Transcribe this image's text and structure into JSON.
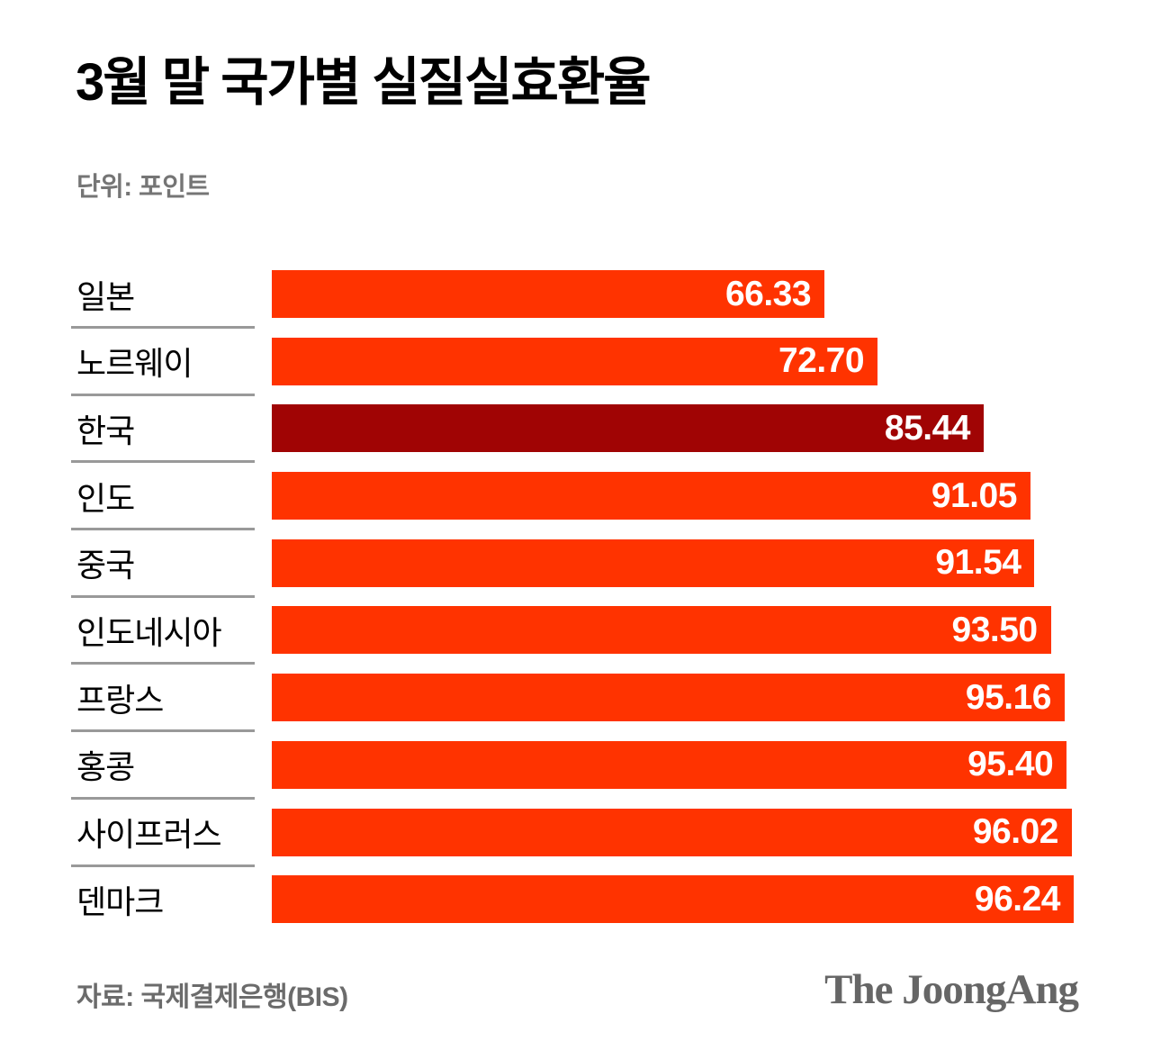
{
  "title": "3월 말 국가별 실질실효환율",
  "unit_label": "단위: 포인트",
  "source_label": "자료: 국제결제은행(BIS)",
  "logo_text": "The JoongAng",
  "colors": {
    "bar": "#ff3300",
    "highlight": "#a00404",
    "divider": "#999999"
  },
  "chart_data": {
    "type": "bar",
    "orientation": "horizontal",
    "title": "3월 말 국가별 실질실효환율",
    "unit": "포인트",
    "source": "국제결제은행(BIS)",
    "categories": [
      "일본",
      "노르웨이",
      "한국",
      "인도",
      "중국",
      "인도네시아",
      "프랑스",
      "홍콩",
      "사이프러스",
      "덴마크"
    ],
    "values": [
      66.33,
      72.7,
      85.44,
      91.05,
      91.54,
      93.5,
      95.16,
      95.4,
      96.02,
      96.24
    ],
    "value_labels": [
      "66.33",
      "72.70",
      "85.44",
      "91.05",
      "91.54",
      "93.50",
      "95.16",
      "95.40",
      "96.02",
      "96.24"
    ],
    "highlighted_category": "한국",
    "xlim": [
      0,
      96.24
    ],
    "grid": false,
    "legend": false,
    "value_label_position": "inside-right"
  }
}
